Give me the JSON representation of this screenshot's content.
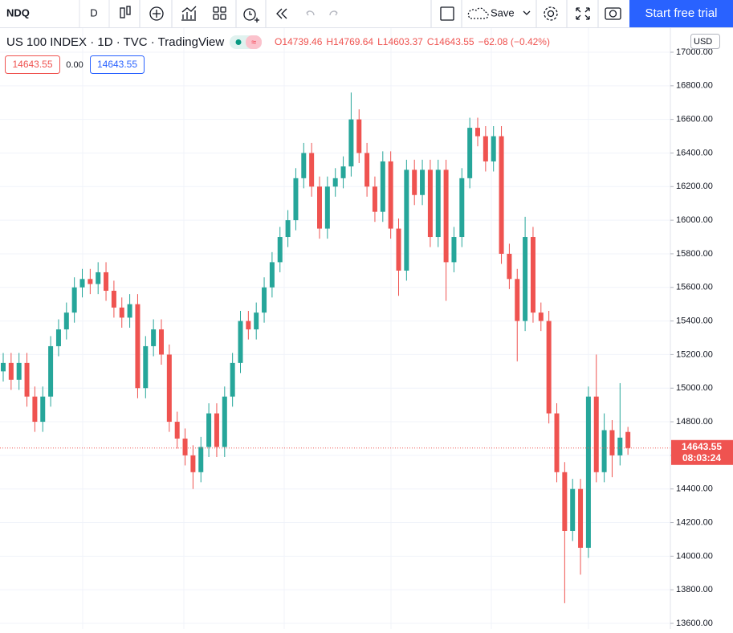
{
  "toolbar": {
    "symbol": "NDQ",
    "interval": "D",
    "save": "Save",
    "cta": "Start free trial"
  },
  "legend": {
    "title": "US 100 INDEX · 1D · TVC · TradingView",
    "ohlc": [
      "O14739.46",
      "H14769.64",
      "L14603.37",
      "C14643.55",
      "−62.08 (−0.42%)"
    ],
    "boxes": [
      "14643.55",
      "0.00",
      "14643.55"
    ]
  },
  "currency": "USD",
  "price_label": {
    "price": "14643.55",
    "countdown": "08:03:24"
  },
  "chart_data": {
    "type": "candlestick",
    "grid": true,
    "ylim": [
      13600,
      17000
    ],
    "yticks": [
      {
        "value": 13600,
        "label": "13600.00"
      },
      {
        "value": 13800,
        "label": "13800.00"
      },
      {
        "value": 14000,
        "label": "14000.00"
      },
      {
        "value": 14200,
        "label": "14200.00"
      },
      {
        "value": 14400,
        "label": "14400.00"
      },
      {
        "value": 14600,
        "label": "14600.00"
      },
      {
        "value": 14800,
        "label": "14800.00"
      },
      {
        "value": 15000,
        "label": "15000.00"
      },
      {
        "value": 15200,
        "label": "15200.00"
      },
      {
        "value": 15400,
        "label": "15400.00"
      },
      {
        "value": 15600,
        "label": "15600.00"
      },
      {
        "value": 15800,
        "label": "15800.00"
      },
      {
        "value": 16000,
        "label": "16000.00"
      },
      {
        "value": 16200,
        "label": "16200.00"
      },
      {
        "value": 16400,
        "label": "16400.00"
      },
      {
        "value": 16600,
        "label": "16600.00"
      },
      {
        "value": 16800,
        "label": "16800.00"
      },
      {
        "value": 17000,
        "label": "17000.00"
      }
    ],
    "series": [
      {
        "up_color": "#26a69a",
        "down_color": "#ef5350",
        "open": [
          15100,
          15150,
          15050,
          15150,
          14950,
          14800,
          14950,
          15250,
          15350,
          15450,
          15600,
          15650,
          15620,
          15690,
          15580,
          15480,
          15420,
          15500,
          15000,
          15250,
          15350,
          15200,
          14800,
          14700,
          14600,
          14500,
          14650,
          14850,
          14650,
          14950,
          15150,
          15400,
          15350,
          15450,
          15600,
          15750,
          15900,
          16000,
          16250,
          16400,
          16200,
          15950,
          16200,
          16250,
          16320,
          16600,
          16400,
          16200,
          16050,
          16350,
          15950,
          15700,
          16300,
          16150,
          16300,
          15900,
          16300,
          15750,
          15900,
          16250,
          16550,
          16500,
          16350,
          16500,
          15800,
          15650,
          15400,
          15900,
          15450,
          15400,
          14850,
          14500,
          14150,
          14400,
          14050,
          14950,
          14500,
          14750,
          14600,
          14739.46
        ],
        "high": [
          15210,
          15210,
          15210,
          15210,
          15010,
          15010,
          15310,
          15410,
          15510,
          15660,
          15710,
          15710,
          15750,
          15750,
          15640,
          15540,
          15560,
          15560,
          15310,
          15410,
          15410,
          15260,
          14860,
          14760,
          14660,
          14710,
          14910,
          14910,
          15010,
          15210,
          15460,
          15460,
          15510,
          15660,
          15810,
          15960,
          16060,
          16310,
          16460,
          16460,
          16260,
          16260,
          16310,
          16380,
          16760,
          16660,
          16460,
          16260,
          16410,
          16410,
          16010,
          16360,
          16360,
          16360,
          16360,
          16360,
          16360,
          15960,
          16310,
          16610,
          16610,
          16560,
          16560,
          16560,
          15860,
          15710,
          16020,
          15960,
          15510,
          15460,
          14910,
          14560,
          14460,
          14460,
          15010,
          15200,
          14850,
          14810,
          15030,
          14769.64
        ],
        "low": [
          15040,
          14990,
          14990,
          14890,
          14740,
          14740,
          14890,
          15190,
          15290,
          15390,
          15540,
          15560,
          15560,
          15520,
          15420,
          15360,
          15360,
          14940,
          14940,
          15190,
          15140,
          14740,
          14640,
          14540,
          14400,
          14440,
          14590,
          14590,
          14590,
          14890,
          15090,
          15290,
          15290,
          15390,
          15540,
          15690,
          15840,
          15940,
          16190,
          16140,
          15890,
          15890,
          16140,
          16190,
          16260,
          16340,
          16140,
          15990,
          15990,
          15890,
          15550,
          15640,
          16090,
          16090,
          15840,
          15840,
          15520,
          15690,
          15840,
          16190,
          16440,
          16290,
          16290,
          15740,
          15590,
          15160,
          15340,
          15390,
          15340,
          14790,
          14440,
          13720,
          14090,
          13890,
          13990,
          14440,
          14440,
          14470,
          14540,
          14603.37
        ],
        "close": [
          15150,
          15050,
          15150,
          14950,
          14800,
          14950,
          15250,
          15350,
          15450,
          15600,
          15650,
          15620,
          15690,
          15580,
          15480,
          15420,
          15500,
          15000,
          15250,
          15350,
          15200,
          14800,
          14700,
          14600,
          14500,
          14650,
          14850,
          14650,
          14950,
          15150,
          15400,
          15350,
          15450,
          15600,
          15750,
          15900,
          16000,
          16250,
          16400,
          16200,
          15950,
          16200,
          16250,
          16320,
          16600,
          16400,
          16200,
          16050,
          16350,
          15950,
          15700,
          16300,
          16150,
          16300,
          15900,
          16300,
          15750,
          15900,
          16250,
          16550,
          16500,
          16350,
          16500,
          15800,
          15650,
          15400,
          15900,
          15450,
          15400,
          14850,
          14500,
          14150,
          14400,
          14050,
          14950,
          14500,
          14750,
          14600,
          14705.63,
          14643.55
        ]
      }
    ]
  }
}
